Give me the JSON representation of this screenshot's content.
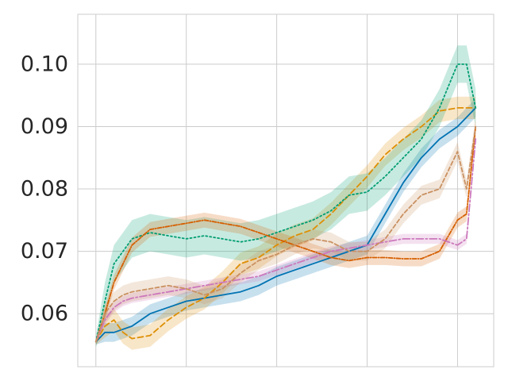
{
  "chart_data": {
    "type": "line",
    "title": "",
    "xlabel": "",
    "ylabel": "",
    "grid": true,
    "legend": "none",
    "xlim": [
      -0.1,
      2.2
    ],
    "ylim": [
      0.0515,
      0.108
    ],
    "x_gridlines": [
      0,
      0.5,
      1.0,
      1.5,
      2.0
    ],
    "y_ticks": [
      0.06,
      0.07,
      0.08,
      0.09,
      0.1
    ],
    "y_tick_labels": [
      "0.06",
      "0.07",
      "0.08",
      "0.09",
      "0.10"
    ],
    "x": [
      0.0,
      0.05,
      0.1,
      0.15,
      0.2,
      0.3,
      0.4,
      0.5,
      0.6,
      0.7,
      0.8,
      0.9,
      1.0,
      1.1,
      1.2,
      1.3,
      1.4,
      1.5,
      1.6,
      1.7,
      1.8,
      1.9,
      2.0,
      2.05,
      2.1
    ],
    "series": [
      {
        "color": "#0173b2",
        "dash": "solid",
        "values": [
          0.0555,
          0.057,
          0.057,
          0.0575,
          0.058,
          0.06,
          0.061,
          0.062,
          0.0625,
          0.063,
          0.0635,
          0.0645,
          0.066,
          0.067,
          0.068,
          0.069,
          0.07,
          0.071,
          0.076,
          0.081,
          0.085,
          0.088,
          0.09,
          0.0915,
          0.093
        ],
        "band": 0.0015
      },
      {
        "color": "#de8f05",
        "dash": "7,4",
        "values": [
          0.0555,
          0.058,
          0.059,
          0.057,
          0.056,
          0.0565,
          0.059,
          0.061,
          0.0625,
          0.065,
          0.068,
          0.069,
          0.071,
          0.0725,
          0.0735,
          0.076,
          0.079,
          0.082,
          0.0855,
          0.088,
          0.09,
          0.0925,
          0.093,
          0.093,
          0.093
        ],
        "band": 0.0018
      },
      {
        "color": "#029e73",
        "dash": "2,3",
        "values": [
          0.0555,
          0.062,
          0.068,
          0.07,
          0.072,
          0.073,
          0.0725,
          0.072,
          0.0725,
          0.072,
          0.0715,
          0.072,
          0.073,
          0.074,
          0.075,
          0.0765,
          0.079,
          0.0795,
          0.082,
          0.085,
          0.088,
          0.093,
          0.1,
          0.1,
          0.093
        ],
        "band": 0.003
      },
      {
        "color": "#d55e00",
        "dash": "5,2,1,2",
        "values": [
          0.0555,
          0.06,
          0.065,
          0.068,
          0.071,
          0.0735,
          0.074,
          0.0745,
          0.075,
          0.0745,
          0.074,
          0.073,
          0.072,
          0.071,
          0.07,
          0.069,
          0.0685,
          0.069,
          0.069,
          0.0688,
          0.0688,
          0.07,
          0.075,
          0.076,
          0.09
        ],
        "band": 0.0012
      },
      {
        "color": "#cc78bc",
        "dash": "9,3,2,3",
        "values": [
          0.0555,
          0.059,
          0.061,
          0.062,
          0.0625,
          0.063,
          0.0635,
          0.064,
          0.0645,
          0.065,
          0.0655,
          0.066,
          0.067,
          0.068,
          0.069,
          0.07,
          0.0705,
          0.071,
          0.0715,
          0.072,
          0.072,
          0.072,
          0.071,
          0.072,
          0.088
        ],
        "band": 0.0008
      },
      {
        "color": "#ca9161",
        "dash": "5,3",
        "values": [
          0.0555,
          0.06,
          0.062,
          0.063,
          0.0635,
          0.064,
          0.0645,
          0.064,
          0.063,
          0.064,
          0.0665,
          0.0685,
          0.0695,
          0.071,
          0.072,
          0.0715,
          0.07,
          0.07,
          0.072,
          0.076,
          0.079,
          0.08,
          0.086,
          0.08,
          0.09
        ],
        "band": 0.0015
      }
    ]
  }
}
